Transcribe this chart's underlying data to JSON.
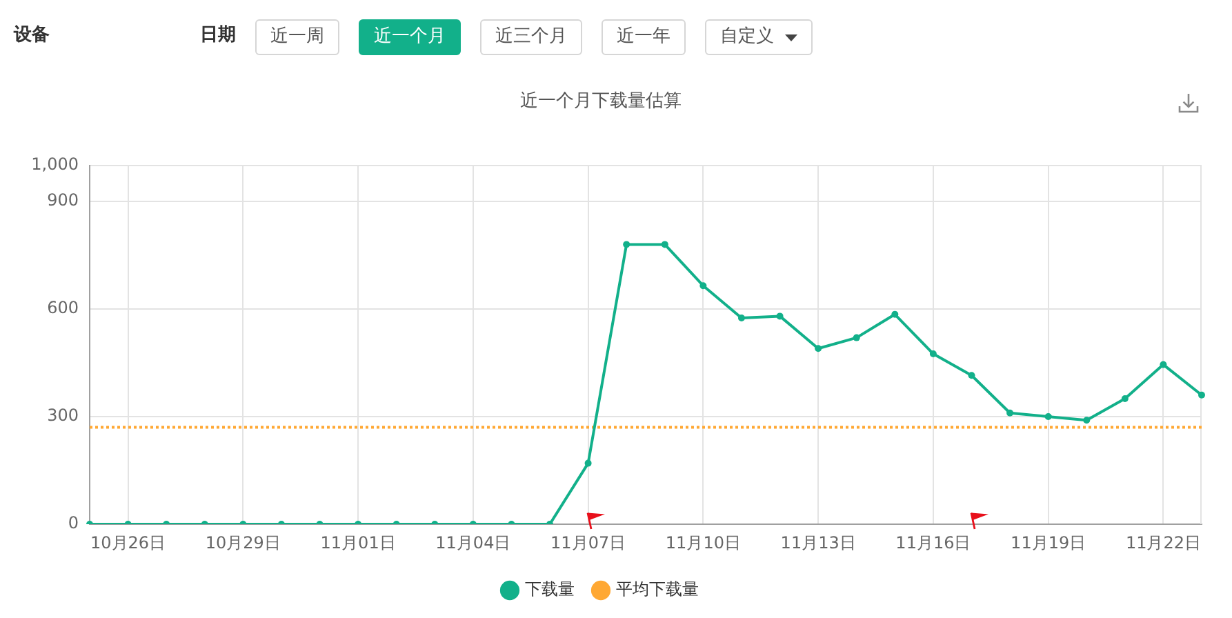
{
  "chart_data": {
    "type": "line",
    "title": "近一个月下载量估算",
    "annotations": [
      "设备",
      "日期",
      "近一周",
      "近一个月",
      "近三个月",
      "近一年",
      "自定义"
    ],
    "categories": [
      null,
      "10月26日",
      null,
      null,
      "10月29日",
      null,
      null,
      "11月01日",
      null,
      null,
      "11月04日",
      null,
      null,
      "11月07日",
      null,
      null,
      "11月10日",
      null,
      null,
      "11月13日",
      null,
      null,
      "11月16日",
      null,
      null,
      "11月19日",
      null,
      null,
      "11月22日",
      null
    ],
    "series": [
      {
        "name": "下载量",
        "color": "#12b08a",
        "marker": "circle",
        "line_style": "solid",
        "values": [
          0,
          0,
          0,
          0,
          0,
          0,
          0,
          0,
          0,
          0,
          0,
          0,
          0,
          170,
          780,
          780,
          665,
          575,
          580,
          490,
          520,
          585,
          475,
          415,
          310,
          300,
          290,
          350,
          445,
          360
        ]
      },
      {
        "name": "平均下载量",
        "color": "#ffa833",
        "marker": "none",
        "line_style": "dotted",
        "values": [
          270,
          270,
          270,
          270,
          270,
          270,
          270,
          270,
          270,
          270,
          270,
          270,
          270,
          270,
          270,
          270,
          270,
          270,
          270,
          270,
          270,
          270,
          270,
          270,
          270,
          270,
          270,
          270,
          270,
          270
        ]
      }
    ],
    "ylim": [
      0,
      1000
    ],
    "yticks": [
      0,
      300,
      600,
      900,
      {
        "value": 1000,
        "label": "1,000"
      }
    ],
    "grid": true,
    "legend": "bottom"
  }
}
